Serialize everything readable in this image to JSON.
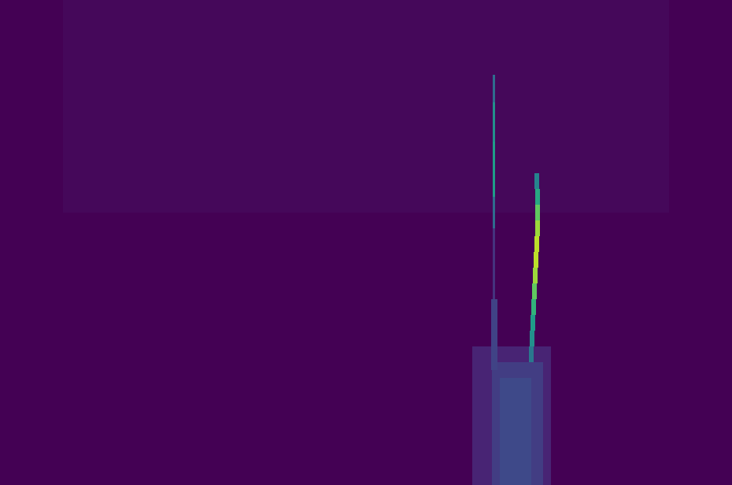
{
  "chart_data": {
    "type": "heatmap",
    "tick_labels": false,
    "xlim": [
      0,
      930
    ],
    "ylim": [
      0,
      616
    ],
    "zlim": [
      0,
      1
    ],
    "cells": [
      {
        "x": [
          0,
          930
        ],
        "y": [
          0,
          616
        ],
        "value": 0
      },
      {
        "x": [
          80,
          850
        ],
        "y": [
          346,
          616
        ],
        "value": 0.02
      },
      {
        "x": [
          600,
          700
        ],
        "y": [
          0,
          176
        ],
        "value": 0.1
      },
      {
        "x": [
          625,
          690
        ],
        "y": [
          0,
          156
        ],
        "value": 0.18
      },
      {
        "x": [
          635,
          675
        ],
        "y": [
          0,
          136
        ],
        "value": 0.22
      },
      {
        "x": [
          626,
          629
        ],
        "y": [
          486,
          521
        ],
        "value": 0.35
      },
      {
        "x": [
          626,
          629
        ],
        "y": [
          436,
          486
        ],
        "value": 0.5
      },
      {
        "x": [
          626,
          629
        ],
        "y": [
          366,
          436
        ],
        "value": 0.55
      },
      {
        "x": [
          626,
          629
        ],
        "y": [
          326,
          366
        ],
        "value": 0.35
      },
      {
        "x": [
          626,
          629
        ],
        "y": [
          236,
          326
        ],
        "value": 0.15
      },
      {
        "x": [
          624,
          632
        ],
        "y": [
          146,
          236
        ],
        "value": 0.2
      },
      {
        "x": [
          679,
          685
        ],
        "y": [
          376,
          396
        ],
        "value": 0.45
      },
      {
        "x": [
          680,
          686
        ],
        "y": [
          356,
          376
        ],
        "value": 0.6
      },
      {
        "x": [
          680,
          686
        ],
        "y": [
          336,
          356
        ],
        "value": 0.75
      },
      {
        "x": [
          680,
          686
        ],
        "y": [
          316,
          336
        ],
        "value": 0.85
      },
      {
        "x": [
          679,
          685
        ],
        "y": [
          296,
          316
        ],
        "value": 0.9
      },
      {
        "x": [
          678,
          684
        ],
        "y": [
          276,
          296
        ],
        "value": 0.9
      },
      {
        "x": [
          677,
          683
        ],
        "y": [
          256,
          276
        ],
        "value": 0.85
      },
      {
        "x": [
          676,
          682
        ],
        "y": [
          236,
          256
        ],
        "value": 0.75
      },
      {
        "x": [
          675,
          681
        ],
        "y": [
          216,
          236
        ],
        "value": 0.65
      },
      {
        "x": [
          674,
          680
        ],
        "y": [
          196,
          216
        ],
        "value": 0.55
      },
      {
        "x": [
          673,
          679
        ],
        "y": [
          176,
          196
        ],
        "value": 0.5
      },
      {
        "x": [
          672,
          678
        ],
        "y": [
          156,
          176
        ],
        "value": 0.4
      }
    ]
  }
}
